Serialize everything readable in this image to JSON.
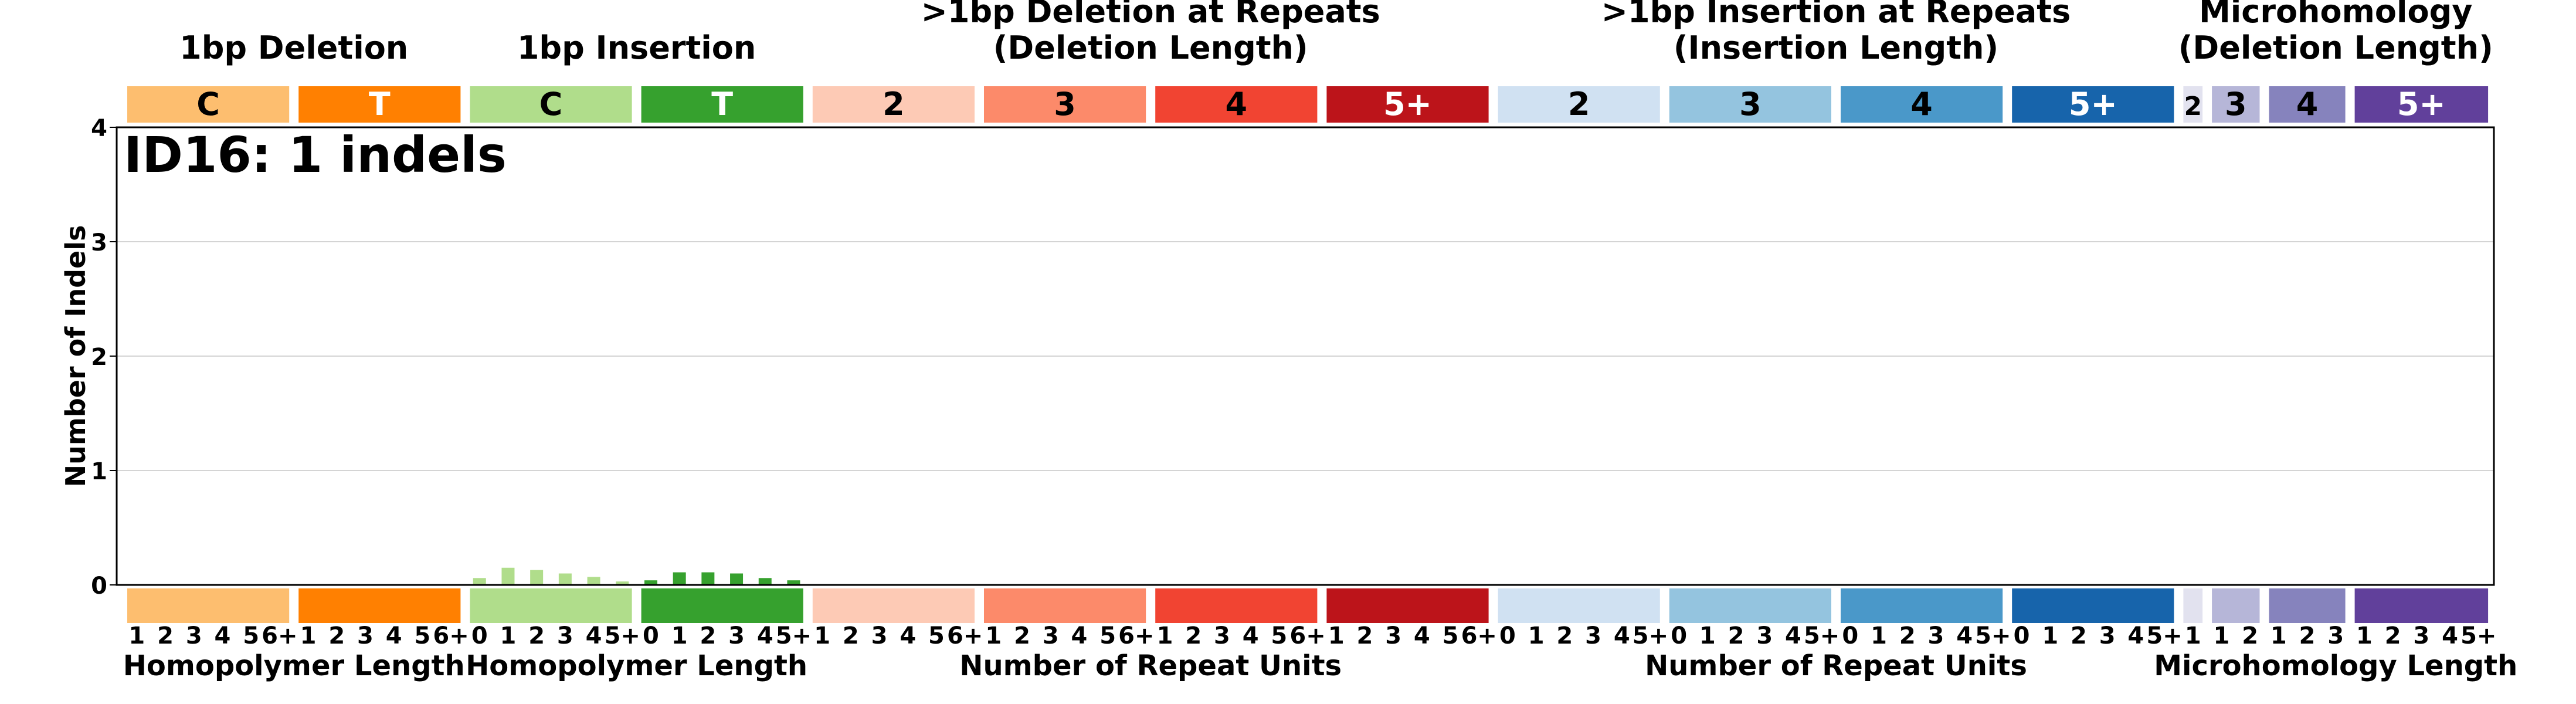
{
  "chart_data": {
    "type": "bar",
    "title": "ID16: 1 indels",
    "ylabel": "Number of Indels",
    "ylim": [
      0,
      4
    ],
    "yticks": [
      "0",
      "1",
      "2",
      "3",
      "4"
    ],
    "grid": true,
    "groups": [
      {
        "key": "del1",
        "title_lines": [
          "1bp Deletion"
        ],
        "xlabel": "Homopolymer Length",
        "blocks": [
          {
            "label": "C",
            "color": "#FDBE6F",
            "text_color": "#000000",
            "ticks": [
              "1",
              "2",
              "3",
              "4",
              "5",
              "6+"
            ],
            "values": [
              0,
              0,
              0,
              0.004,
              0,
              0
            ]
          },
          {
            "label": "T",
            "color": "#FF8001",
            "text_color": "#FFFFFF",
            "ticks": [
              "1",
              "2",
              "3",
              "4",
              "5",
              "6+"
            ],
            "values": [
              0,
              0,
              0,
              0,
              0,
              0
            ]
          }
        ]
      },
      {
        "key": "ins1",
        "title_lines": [
          "1bp Insertion"
        ],
        "xlabel": "Homopolymer Length",
        "blocks": [
          {
            "label": "C",
            "color": "#B0DD8B",
            "text_color": "#000000",
            "ticks": [
              "0",
              "1",
              "2",
              "3",
              "4",
              "5+"
            ],
            "values": [
              0.06,
              0.15,
              0.13,
              0.1,
              0.07,
              0.03
            ]
          },
          {
            "label": "T",
            "color": "#36A12E",
            "text_color": "#FFFFFF",
            "ticks": [
              "0",
              "1",
              "2",
              "3",
              "4",
              "5+"
            ],
            "values": [
              0.04,
              0.11,
              0.11,
              0.1,
              0.06,
              0.04
            ]
          }
        ]
      },
      {
        "key": "delrep",
        "title_lines": [
          ">1bp Deletion at Repeats",
          "(Deletion Length)"
        ],
        "xlabel": "Number of Repeat Units",
        "blocks": [
          {
            "label": "2",
            "color": "#FDCAB5",
            "text_color": "#000000",
            "ticks": [
              "1",
              "2",
              "3",
              "4",
              "5",
              "6+"
            ],
            "values": [
              0,
              0,
              0,
              0,
              0,
              0
            ]
          },
          {
            "label": "3",
            "color": "#FC8A6A",
            "text_color": "#000000",
            "ticks": [
              "1",
              "2",
              "3",
              "4",
              "5",
              "6+"
            ],
            "values": [
              0,
              0,
              0,
              0,
              0,
              0
            ]
          },
          {
            "label": "4",
            "color": "#F14432",
            "text_color": "#000000",
            "ticks": [
              "1",
              "2",
              "3",
              "4",
              "5",
              "6+"
            ],
            "values": [
              0,
              0,
              0,
              0,
              0,
              0
            ]
          },
          {
            "label": "5+",
            "color": "#BC141A",
            "text_color": "#FFFFFF",
            "ticks": [
              "1",
              "2",
              "3",
              "4",
              "5",
              "6+"
            ],
            "values": [
              0,
              0,
              0,
              0,
              0,
              0
            ]
          }
        ]
      },
      {
        "key": "insrep",
        "title_lines": [
          ">1bp Insertion at Repeats",
          "(Insertion Length)"
        ],
        "xlabel": "Number of Repeat Units",
        "blocks": [
          {
            "label": "2",
            "color": "#D0E1F2",
            "text_color": "#000000",
            "ticks": [
              "0",
              "1",
              "2",
              "3",
              "4",
              "5+"
            ],
            "values": [
              0,
              0,
              0,
              0,
              0,
              0
            ]
          },
          {
            "label": "3",
            "color": "#94C4DF",
            "text_color": "#000000",
            "ticks": [
              "0",
              "1",
              "2",
              "3",
              "4",
              "5+"
            ],
            "values": [
              0,
              0,
              0,
              0,
              0,
              0
            ]
          },
          {
            "label": "4",
            "color": "#4A98C9",
            "text_color": "#000000",
            "ticks": [
              "0",
              "1",
              "2",
              "3",
              "4",
              "5+"
            ],
            "values": [
              0,
              0,
              0,
              0,
              0,
              0
            ]
          },
          {
            "label": "5+",
            "color": "#1764AB",
            "text_color": "#FFFFFF",
            "ticks": [
              "0",
              "1",
              "2",
              "3",
              "4",
              "5+"
            ],
            "values": [
              0,
              0,
              0,
              0,
              0,
              0
            ]
          }
        ]
      },
      {
        "key": "mh",
        "title_lines": [
          "Microhomology",
          "(Deletion Length)"
        ],
        "xlabel": "Microhomology Length",
        "blocks": [
          {
            "label": "2",
            "color": "#E2E2EF",
            "text_color": "#000000",
            "ticks": [
              "1"
            ],
            "values": [
              0
            ]
          },
          {
            "label": "3",
            "color": "#B6B6D8",
            "text_color": "#000000",
            "ticks": [
              "1",
              "2"
            ],
            "values": [
              0,
              0
            ]
          },
          {
            "label": "4",
            "color": "#8683BD",
            "text_color": "#000000",
            "ticks": [
              "1",
              "2",
              "3"
            ],
            "values": [
              0,
              0,
              0
            ]
          },
          {
            "label": "5+",
            "color": "#61409B",
            "text_color": "#FFFFFF",
            "ticks": [
              "1",
              "2",
              "3",
              "4",
              "5+"
            ],
            "values": [
              0,
              0,
              0,
              0,
              0
            ]
          }
        ]
      }
    ]
  }
}
